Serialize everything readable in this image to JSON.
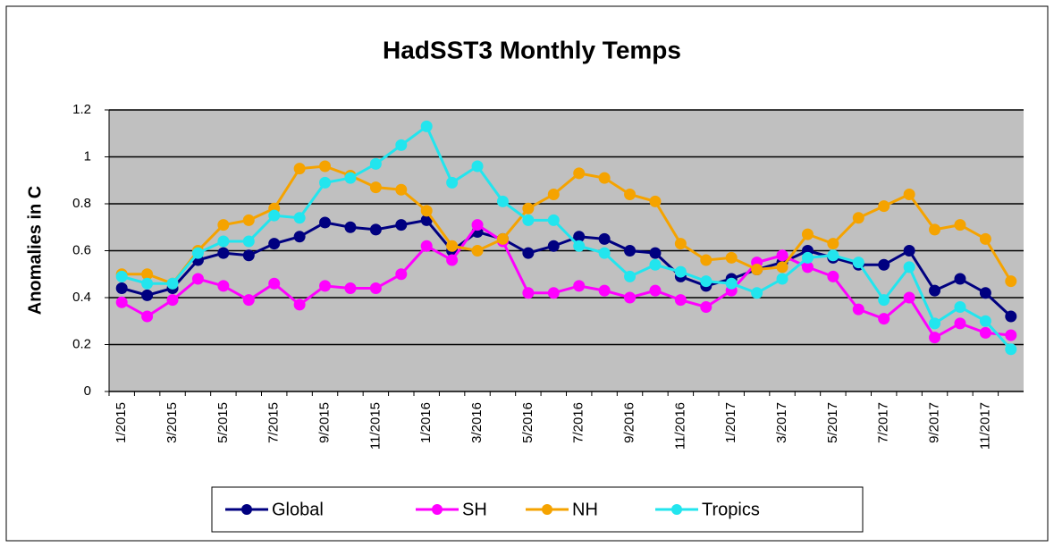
{
  "chart_data": {
    "type": "line",
    "title": "HadSST3 Monthly Temps",
    "y_label": "Anomalies in C",
    "categories": [
      "1/2015",
      null,
      "3/2015",
      null,
      "5/2015",
      null,
      "7/2015",
      null,
      "9/2015",
      null,
      "11/2015",
      null,
      "1/2016",
      null,
      "3/2016",
      null,
      "5/2016",
      null,
      "7/2016",
      null,
      "9/2016",
      null,
      "11/2016",
      null,
      "1/2017",
      null,
      "3/2017",
      null,
      "5/2017",
      null,
      "7/2017",
      null,
      "9/2017",
      null,
      "11/2017",
      null
    ],
    "series": [
      {
        "name": "Global",
        "color": "#000080",
        "values": [
          0.44,
          0.41,
          0.44,
          0.56,
          0.59,
          0.58,
          0.63,
          0.66,
          0.72,
          0.7,
          0.69,
          0.71,
          0.73,
          0.6,
          0.68,
          0.65,
          0.59,
          0.62,
          0.66,
          0.65,
          0.6,
          0.59,
          0.49,
          0.45,
          0.48,
          0.52,
          0.55,
          0.6,
          0.57,
          0.54,
          0.54,
          0.6,
          0.43,
          0.48,
          0.42,
          0.32
        ]
      },
      {
        "name": "SH",
        "color": "#ff00ff",
        "values": [
          0.38,
          0.32,
          0.39,
          0.48,
          0.45,
          0.39,
          0.46,
          0.37,
          0.45,
          0.44,
          0.44,
          0.5,
          0.62,
          0.56,
          0.71,
          0.64,
          0.42,
          0.42,
          0.45,
          0.43,
          0.4,
          0.43,
          0.39,
          0.36,
          0.43,
          0.55,
          0.58,
          0.53,
          0.49,
          0.35,
          0.31,
          0.4,
          0.23,
          0.29,
          0.25,
          0.24
        ]
      },
      {
        "name": "NH",
        "color": "#f5a300",
        "values": [
          0.5,
          0.5,
          0.46,
          0.6,
          0.71,
          0.73,
          0.78,
          0.95,
          0.96,
          0.92,
          0.87,
          0.86,
          0.77,
          0.62,
          0.6,
          0.65,
          0.78,
          0.84,
          0.93,
          0.91,
          0.84,
          0.81,
          0.63,
          0.56,
          0.57,
          0.52,
          0.53,
          0.67,
          0.63,
          0.74,
          0.79,
          0.84,
          0.69,
          0.71,
          0.65,
          0.47
        ]
      },
      {
        "name": "Tropics",
        "color": "#22e5ee",
        "values": [
          0.49,
          0.46,
          0.46,
          0.59,
          0.64,
          0.64,
          0.75,
          0.74,
          0.89,
          0.91,
          0.97,
          1.05,
          1.13,
          0.89,
          0.96,
          0.81,
          0.73,
          0.73,
          0.62,
          0.59,
          0.49,
          0.54,
          0.51,
          0.47,
          0.46,
          0.42,
          0.48,
          0.57,
          0.58,
          0.55,
          0.39,
          0.53,
          0.29,
          0.36,
          0.3,
          0.18
        ]
      }
    ],
    "ylim": [
      0,
      1.2
    ],
    "yticks": [
      0,
      0.2,
      0.4,
      0.6,
      0.8,
      1,
      1.2
    ],
    "grid": true,
    "legend": "bottom",
    "plot_background": "#c0c0c0"
  }
}
